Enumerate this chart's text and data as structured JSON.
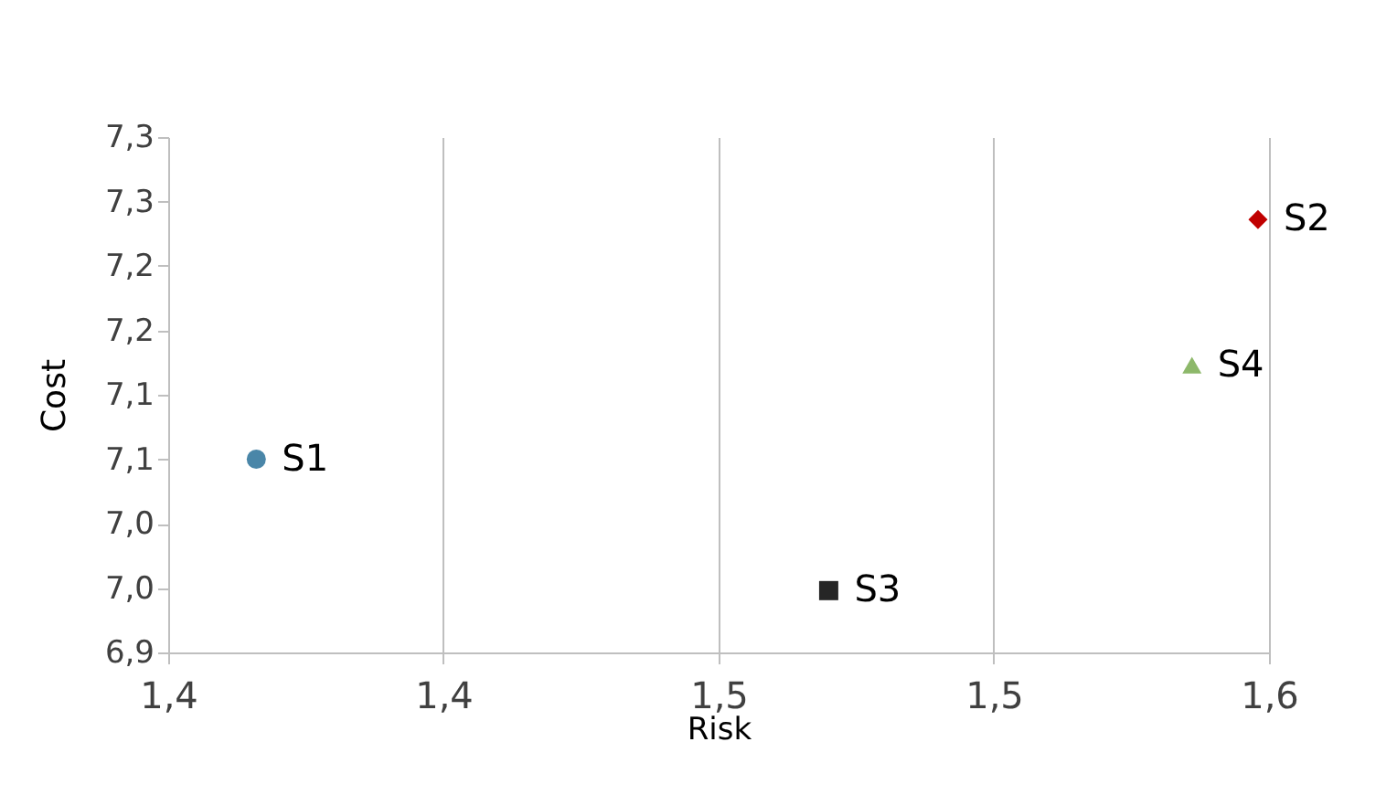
{
  "chart_data": {
    "type": "scatter",
    "xlabel": "Risk",
    "ylabel": "Cost",
    "series": [
      {
        "name": "S1",
        "color": "#4a86a8",
        "marker": "circle",
        "x": [
          1.366
        ],
        "values": [
          7.05
        ]
      },
      {
        "name": "S2",
        "color": "#c00000",
        "marker": "diamond",
        "x": [
          1.548
        ],
        "values": [
          7.236
        ]
      },
      {
        "name": "S3",
        "color": "#262626",
        "marker": "square",
        "x": [
          1.47
        ],
        "values": [
          6.948
        ]
      },
      {
        "name": "S4",
        "color": "#8db86a",
        "marker": "triangle",
        "x": [
          1.536
        ],
        "values": [
          7.123
        ]
      }
    ],
    "xlim": [
      1.35,
      1.55
    ],
    "xticks": [
      {
        "value": 1.35,
        "label": "1,4"
      },
      {
        "value": 1.4,
        "label": "1,4"
      },
      {
        "value": 1.45,
        "label": "1,5"
      },
      {
        "value": 1.5,
        "label": "1,5"
      },
      {
        "value": 1.55,
        "label": "1,6"
      }
    ],
    "ylim": [
      6.9,
      7.3
    ],
    "yticks": [
      {
        "value": 6.9,
        "label": "6,9"
      },
      {
        "value": 6.95,
        "label": "7,0"
      },
      {
        "value": 7.0,
        "label": "7,0"
      },
      {
        "value": 7.05,
        "label": "7,1"
      },
      {
        "value": 7.1,
        "label": "7,1"
      },
      {
        "value": 7.15,
        "label": "7,2"
      },
      {
        "value": 7.2,
        "label": "7,2"
      },
      {
        "value": 7.25,
        "label": "7,3"
      },
      {
        "value": 7.3,
        "label": "7,3"
      }
    ],
    "grid": "x",
    "legend": false
  }
}
